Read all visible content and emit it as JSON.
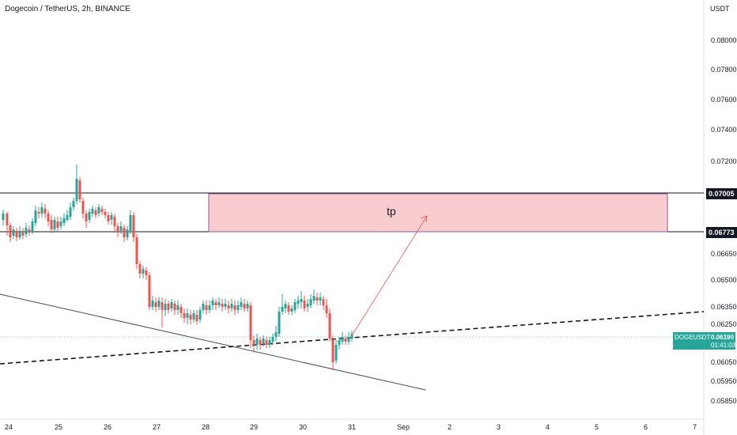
{
  "header": {
    "title": "Dogecoin / TetherUS, 2h, BINANCE",
    "unit": "USDT"
  },
  "price_axis": {
    "ticks": [
      "0.08000",
      "0.07800",
      "0.07600",
      "0.07400",
      "0.07200",
      "0.06650",
      "0.06500",
      "0.06350",
      "0.06250",
      "0.06050",
      "0.05950",
      "0.05850"
    ]
  },
  "time_axis": {
    "ticks": [
      "24",
      "25",
      "26",
      "27",
      "28",
      "29",
      "30",
      "31",
      "Sep",
      "2",
      "3",
      "4",
      "5",
      "6",
      "7"
    ]
  },
  "levels": {
    "upper": "0.07005",
    "lower": "0.06773"
  },
  "annotation": {
    "zone_label": "tp"
  },
  "live_price": {
    "symbol": "DOGEUSDT",
    "price": "0.06190",
    "countdown": "01:41:03"
  },
  "colors": {
    "up": "#26a69a",
    "down": "#ef5350",
    "zone_fill": "#f9ccd0",
    "zone_border": "#8e5aa0",
    "level_line": "#131722"
  }
}
